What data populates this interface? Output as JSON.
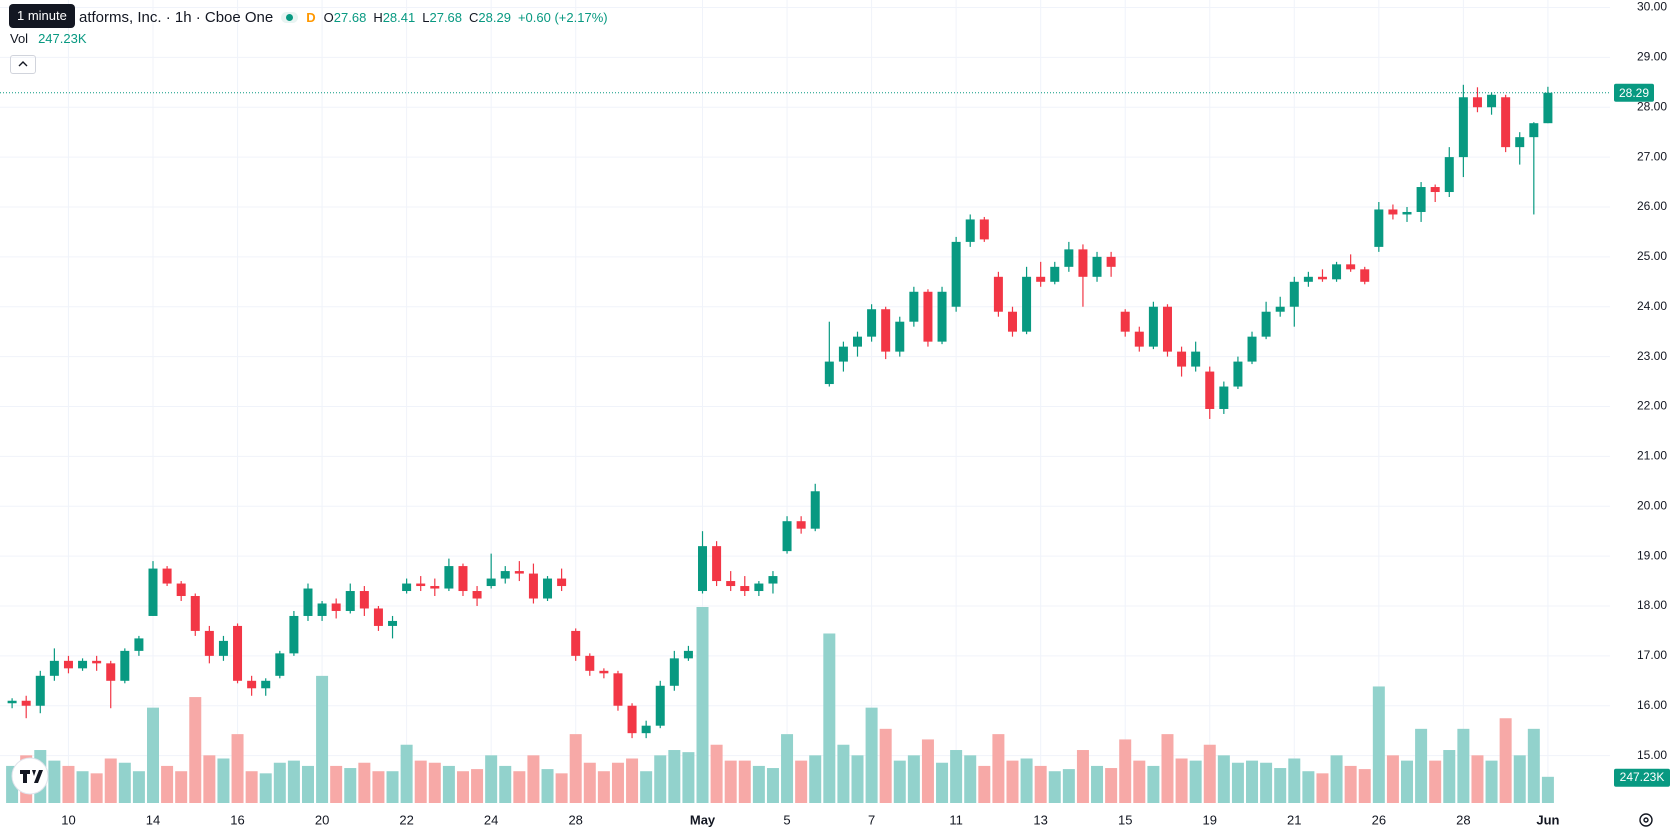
{
  "chart_data": {
    "type": "candlestick",
    "tooltip": "1 minute",
    "title": "atforms, Inc. · 1h · Cboe One",
    "interval_badge": "D",
    "ohlc_letters": [
      "O",
      "H",
      "L",
      "C"
    ],
    "change_label": "+0.60 (+2.17%)",
    "volume_title": "Vol",
    "volume_label": "247.23K",
    "up_color": "#089981",
    "down_color": "#f23645",
    "volume_up_color": "#92d2cc",
    "volume_down_color": "#f7a9a7",
    "grid": true,
    "ylim": [
      14.11,
      30.15
    ],
    "yticks": [
      {
        "value": 15,
        "label": "15.00"
      },
      {
        "value": 16,
        "label": "16.00"
      },
      {
        "value": 17,
        "label": "17.00"
      },
      {
        "value": 18,
        "label": "18.00"
      },
      {
        "value": 19,
        "label": "19.00"
      },
      {
        "value": 20,
        "label": "20.00"
      },
      {
        "value": 21,
        "label": "21.00"
      },
      {
        "value": 22,
        "label": "22.00"
      },
      {
        "value": 23,
        "label": "23.00"
      },
      {
        "value": 24,
        "label": "24.00"
      },
      {
        "value": 25,
        "label": "25.00"
      },
      {
        "value": 26,
        "label": "26.00"
      },
      {
        "value": 27,
        "label": "27.00"
      },
      {
        "value": 28,
        "label": "28.00"
      },
      {
        "value": 29,
        "label": "29.00"
      },
      {
        "value": 30,
        "label": "30.00"
      }
    ],
    "categories": [
      null,
      null,
      null,
      null,
      "10",
      null,
      null,
      null,
      null,
      null,
      "14",
      null,
      null,
      null,
      null,
      null,
      "16",
      null,
      null,
      null,
      null,
      null,
      "20",
      null,
      null,
      null,
      null,
      null,
      "22",
      null,
      null,
      null,
      null,
      null,
      "24",
      null,
      null,
      null,
      null,
      null,
      "28",
      null,
      null,
      null,
      null,
      null,
      null,
      null,
      null,
      "May",
      null,
      null,
      null,
      null,
      null,
      "5",
      null,
      null,
      null,
      null,
      null,
      "7",
      null,
      null,
      null,
      null,
      null,
      "11",
      null,
      null,
      null,
      null,
      null,
      "13",
      null,
      null,
      null,
      null,
      null,
      "15",
      null,
      null,
      null,
      null,
      null,
      "19",
      null,
      null,
      null,
      null,
      null,
      "21",
      null,
      null,
      null,
      null,
      null,
      "26",
      null,
      null,
      null,
      null,
      null,
      "28",
      null,
      null,
      null,
      null,
      null,
      "Jun"
    ],
    "open": [
      16.05,
      16.1,
      16.0,
      16.6,
      16.9,
      16.75,
      16.9,
      16.85,
      16.5,
      17.1,
      17.8,
      18.75,
      18.45,
      18.2,
      17.5,
      17.0,
      17.6,
      16.5,
      16.35,
      16.6,
      17.05,
      17.8,
      17.8,
      18.05,
      17.9,
      18.3,
      17.95,
      17.6,
      18.3,
      18.45,
      18.4,
      18.35,
      18.8,
      18.3,
      18.4,
      18.55,
      18.7,
      18.65,
      18.15,
      18.55,
      17.5,
      17.0,
      16.7,
      16.65,
      16.0,
      15.45,
      15.6,
      16.4,
      16.95,
      18.3,
      19.2,
      18.5,
      18.4,
      18.3,
      18.45,
      19.1,
      19.7,
      19.55,
      22.45,
      22.9,
      23.2,
      23.4,
      23.95,
      23.1,
      23.7,
      24.3,
      23.3,
      24.0,
      25.3,
      25.75,
      24.6,
      23.9,
      23.5,
      24.6,
      24.5,
      24.8,
      25.15,
      24.6,
      25.0,
      23.9,
      23.5,
      23.2,
      24.0,
      23.1,
      22.8,
      22.7,
      21.95,
      22.4,
      22.9,
      23.4,
      23.9,
      24.0,
      24.5,
      24.6,
      24.55,
      24.85,
      24.75,
      25.2,
      25.95,
      25.85,
      25.9,
      26.4,
      26.3,
      27.0,
      28.2,
      28.0,
      28.2,
      27.2,
      27.4,
      27.68
    ],
    "high": [
      16.15,
      16.2,
      16.7,
      17.15,
      17.0,
      16.95,
      17.0,
      16.9,
      17.15,
      17.4,
      18.9,
      18.8,
      18.5,
      18.25,
      17.6,
      17.4,
      17.65,
      16.6,
      16.55,
      17.1,
      17.9,
      18.45,
      18.1,
      18.15,
      18.45,
      18.4,
      18.0,
      17.8,
      18.55,
      18.6,
      18.55,
      18.95,
      18.85,
      18.4,
      19.05,
      18.8,
      18.9,
      18.85,
      18.6,
      18.75,
      17.55,
      17.05,
      16.75,
      16.7,
      16.05,
      15.7,
      16.5,
      17.1,
      17.2,
      19.5,
      19.3,
      18.7,
      18.6,
      18.5,
      18.7,
      19.8,
      19.8,
      20.45,
      23.7,
      23.3,
      23.5,
      24.05,
      24.0,
      23.8,
      24.4,
      24.35,
      24.4,
      25.4,
      25.85,
      25.8,
      24.7,
      24.0,
      24.8,
      24.9,
      24.9,
      25.3,
      25.25,
      25.1,
      25.1,
      23.95,
      23.6,
      24.1,
      24.05,
      23.2,
      23.3,
      22.8,
      22.5,
      23.0,
      23.5,
      24.1,
      24.2,
      24.6,
      24.7,
      24.75,
      24.9,
      25.05,
      24.8,
      26.1,
      26.05,
      26.0,
      26.5,
      26.45,
      27.2,
      28.45,
      28.4,
      28.3,
      28.25,
      27.5,
      27.7,
      28.41
    ],
    "low": [
      15.95,
      15.75,
      15.85,
      16.5,
      16.65,
      16.7,
      16.7,
      15.95,
      16.45,
      17.0,
      17.8,
      18.4,
      18.1,
      17.4,
      16.85,
      16.9,
      16.45,
      16.2,
      16.2,
      16.55,
      17.0,
      17.7,
      17.7,
      17.75,
      17.85,
      17.8,
      17.5,
      17.35,
      18.25,
      18.3,
      18.2,
      18.3,
      18.2,
      18.0,
      18.35,
      18.45,
      18.5,
      18.05,
      18.1,
      18.3,
      16.9,
      16.6,
      16.55,
      15.9,
      15.35,
      15.35,
      15.55,
      16.3,
      16.9,
      18.25,
      18.4,
      18.3,
      18.2,
      18.2,
      18.25,
      19.05,
      19.45,
      19.5,
      22.4,
      22.7,
      23.0,
      23.3,
      22.95,
      23.0,
      23.6,
      23.2,
      23.25,
      23.9,
      25.2,
      25.3,
      23.8,
      23.4,
      23.45,
      24.4,
      24.45,
      24.7,
      24.0,
      24.5,
      24.6,
      23.4,
      23.1,
      23.15,
      23.0,
      22.6,
      22.7,
      21.75,
      21.85,
      22.35,
      22.85,
      23.35,
      23.8,
      23.6,
      24.4,
      24.5,
      24.5,
      24.7,
      24.45,
      25.1,
      25.75,
      25.7,
      25.7,
      26.1,
      26.2,
      26.6,
      27.9,
      27.85,
      27.1,
      26.85,
      25.85,
      27.68
    ],
    "close": [
      16.1,
      16.0,
      16.6,
      16.9,
      16.75,
      16.9,
      16.85,
      16.5,
      17.1,
      17.35,
      18.75,
      18.45,
      18.2,
      17.5,
      17.0,
      17.3,
      16.5,
      16.35,
      16.5,
      17.05,
      17.8,
      18.35,
      18.05,
      17.9,
      18.3,
      17.95,
      17.6,
      17.7,
      18.45,
      18.4,
      18.35,
      18.8,
      18.3,
      18.15,
      18.55,
      18.7,
      18.65,
      18.15,
      18.55,
      18.4,
      17.0,
      16.7,
      16.65,
      16.0,
      15.45,
      15.6,
      16.4,
      16.95,
      17.1,
      19.2,
      18.5,
      18.4,
      18.3,
      18.45,
      18.6,
      19.7,
      19.55,
      20.3,
      22.9,
      23.2,
      23.4,
      23.95,
      23.1,
      23.7,
      24.3,
      23.3,
      24.3,
      25.3,
      25.75,
      25.35,
      23.9,
      23.5,
      24.6,
      24.5,
      24.8,
      25.15,
      24.6,
      25.0,
      24.8,
      23.5,
      23.2,
      24.0,
      23.1,
      22.8,
      23.1,
      21.95,
      22.4,
      22.9,
      23.4,
      23.9,
      24.0,
      24.5,
      24.6,
      24.55,
      24.85,
      24.75,
      24.5,
      25.95,
      25.85,
      25.9,
      26.4,
      26.3,
      27.0,
      28.2,
      28.0,
      28.25,
      27.2,
      27.4,
      27.68,
      28.29
    ],
    "volume": [
      350,
      450,
      500,
      400,
      350,
      300,
      280,
      420,
      380,
      300,
      900,
      350,
      300,
      1000,
      450,
      420,
      650,
      300,
      280,
      380,
      400,
      350,
      1200,
      350,
      330,
      380,
      300,
      300,
      550,
      400,
      380,
      350,
      300,
      320,
      450,
      350,
      300,
      450,
      320,
      280,
      650,
      380,
      300,
      380,
      420,
      300,
      450,
      500,
      480,
      1850,
      550,
      400,
      400,
      350,
      330,
      650,
      400,
      450,
      1600,
      550,
      450,
      900,
      700,
      400,
      450,
      600,
      380,
      500,
      450,
      350,
      650,
      400,
      420,
      350,
      300,
      320,
      500,
      350,
      330,
      600,
      400,
      350,
      650,
      420,
      400,
      550,
      450,
      380,
      400,
      380,
      330,
      420,
      300,
      280,
      450,
      350,
      320,
      1100,
      450,
      400,
      700,
      400,
      500,
      700,
      450,
      400,
      800,
      450,
      700,
      247.23
    ]
  }
}
